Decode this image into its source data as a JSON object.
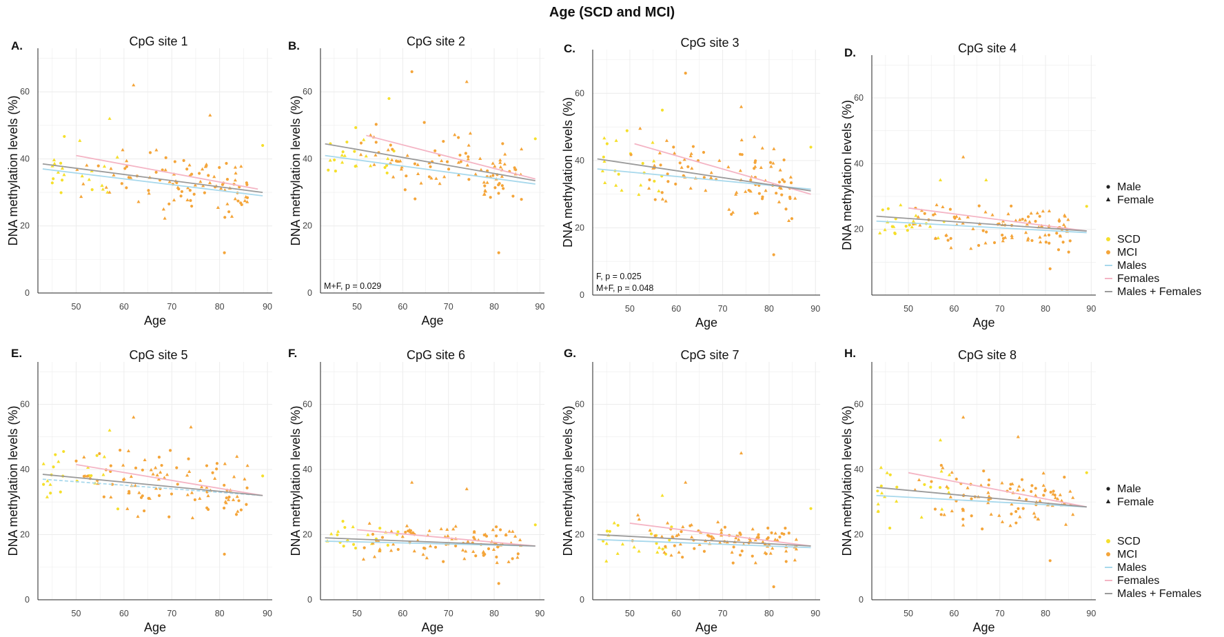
{
  "title": "Age (SCD and MCI)",
  "legend": {
    "shape_items": [
      {
        "label": "Male",
        "shape": "circle",
        "color": "#222222"
      },
      {
        "label": "Female",
        "shape": "triangle",
        "color": "#222222"
      }
    ],
    "color_items": [
      {
        "label": "SCD",
        "kind": "point",
        "color": "#f5df2c"
      },
      {
        "label": "MCI",
        "kind": "point",
        "color": "#f4a53a"
      },
      {
        "label": "Males",
        "kind": "line",
        "color": "#a7d8ec"
      },
      {
        "label": "Females",
        "kind": "line",
        "color": "#f4b4c4"
      },
      {
        "label": "Males + Females",
        "kind": "line",
        "color": "#9a9a9a"
      }
    ]
  },
  "colors": {
    "scd": "#f5df2c",
    "mci": "#f4a53a",
    "males": "#a7d8ec",
    "females": "#f4b4c4",
    "combined": "#9a9a9a",
    "grid": "#ececec"
  },
  "chart_data": [
    {
      "type": "scatter",
      "letter": "A.",
      "title": "CpG site 1",
      "xlabel": "Age",
      "ylabel": "DNA methylation levels (%)",
      "xticks": [
        50,
        60,
        70,
        80,
        90
      ],
      "yticks": [
        0,
        20,
        40,
        60
      ],
      "xlim": [
        42,
        91
      ],
      "ylim": [
        0,
        73
      ],
      "annotations": [],
      "fits": [
        {
          "series": "Males",
          "x": [
            43,
            89
          ],
          "y": [
            37,
            29
          ]
        },
        {
          "series": "Females",
          "x": [
            50,
            88
          ],
          "y": [
            41,
            31
          ]
        },
        {
          "series": "Males + Females",
          "x": [
            43,
            89
          ],
          "y": [
            38.5,
            30
          ]
        }
      ],
      "points": {
        "base": 33,
        "seed": 11,
        "spread": 7,
        "slope": -0.18,
        "outliers": [
          [
            62,
            62,
            "F",
            "MCI"
          ],
          [
            81,
            12,
            "M",
            "MCI"
          ],
          [
            57,
            52,
            "F",
            "SCD"
          ],
          [
            78,
            53,
            "F",
            "MCI"
          ],
          [
            89,
            44,
            "M",
            "SCD"
          ]
        ]
      }
    },
    {
      "type": "scatter",
      "letter": "B.",
      "title": "CpG site 2",
      "xlabel": "Age",
      "ylabel": "DNA methylation levels (%)",
      "xticks": [
        50,
        60,
        70,
        80,
        90
      ],
      "yticks": [
        0,
        20,
        40,
        60
      ],
      "xlim": [
        42,
        91
      ],
      "ylim": [
        0,
        73
      ],
      "annotations": [
        "M+F, p = 0.029"
      ],
      "fits": [
        {
          "series": "Males",
          "x": [
            43,
            89
          ],
          "y": [
            41,
            32.5
          ]
        },
        {
          "series": "Females",
          "x": [
            52,
            89
          ],
          "y": [
            47,
            34
          ]
        },
        {
          "series": "Males + Females",
          "x": [
            43,
            89
          ],
          "y": [
            44.5,
            33.5
          ]
        }
      ],
      "points": {
        "base": 38,
        "seed": 23,
        "spread": 8,
        "slope": -0.2,
        "outliers": [
          [
            62,
            66,
            "M",
            "MCI"
          ],
          [
            74,
            63,
            "F",
            "MCI"
          ],
          [
            81,
            12,
            "M",
            "MCI"
          ],
          [
            57,
            58,
            "M",
            "SCD"
          ],
          [
            89,
            46,
            "M",
            "SCD"
          ]
        ]
      }
    },
    {
      "type": "scatter",
      "letter": "C.",
      "title": "CpG site 3",
      "xlabel": "Age",
      "ylabel": "DNA methylation levels (%)",
      "xticks": [
        50,
        60,
        70,
        80,
        90
      ],
      "yticks": [
        0,
        20,
        40,
        60
      ],
      "xlim": [
        42,
        91
      ],
      "ylim": [
        0,
        73
      ],
      "annotations": [
        "F, p = 0.025",
        "M+F, p = 0.048"
      ],
      "fits": [
        {
          "series": "Males",
          "x": [
            43,
            89
          ],
          "y": [
            37.5,
            31.5
          ]
        },
        {
          "series": "Females",
          "x": [
            51,
            89
          ],
          "y": [
            45,
            30
          ]
        },
        {
          "series": "Males + Females",
          "x": [
            43,
            89
          ],
          "y": [
            40.5,
            31
          ]
        }
      ],
      "points": {
        "base": 35,
        "seed": 37,
        "spread": 8,
        "slope": -0.2,
        "outliers": [
          [
            62,
            66,
            "M",
            "MCI"
          ],
          [
            74,
            56,
            "F",
            "MCI"
          ],
          [
            81,
            12,
            "M",
            "MCI"
          ],
          [
            57,
            55,
            "M",
            "SCD"
          ],
          [
            89,
            44,
            "M",
            "SCD"
          ]
        ]
      }
    },
    {
      "type": "scatter",
      "letter": "D.",
      "title": "CpG site 4",
      "xlabel": "Age",
      "ylabel": "DNA methylation levels (%)",
      "xticks": [
        50,
        60,
        70,
        80,
        90
      ],
      "yticks": [
        20,
        40,
        60
      ],
      "xlim": [
        42,
        91
      ],
      "ylim": [
        0,
        73
      ],
      "annotations": [],
      "fits": [
        {
          "series": "Males",
          "x": [
            43,
            89
          ],
          "y": [
            22.5,
            19
          ]
        },
        {
          "series": "Females",
          "x": [
            50,
            89
          ],
          "y": [
            26.5,
            19.5
          ]
        },
        {
          "series": "Males + Females",
          "x": [
            43,
            89
          ],
          "y": [
            24,
            19.5
          ]
        }
      ],
      "points": {
        "base": 21,
        "seed": 53,
        "spread": 5,
        "slope": -0.09,
        "outliers": [
          [
            62,
            42,
            "F",
            "MCI"
          ],
          [
            81,
            8,
            "M",
            "MCI"
          ],
          [
            57,
            35,
            "F",
            "SCD"
          ],
          [
            67,
            35,
            "F",
            "SCD"
          ],
          [
            89,
            27,
            "M",
            "SCD"
          ]
        ]
      }
    },
    {
      "type": "scatter",
      "letter": "E.",
      "title": "CpG site 5",
      "xlabel": "Age",
      "ylabel": "DNA methylation levels (%)",
      "xticks": [
        50,
        60,
        70,
        80,
        90
      ],
      "yticks": [
        0,
        20,
        40,
        60
      ],
      "xlim": [
        42,
        91
      ],
      "ylim": [
        0,
        73
      ],
      "annotations": [],
      "fits": [
        {
          "series": "Males",
          "x": [
            43,
            89
          ],
          "y": [
            37,
            32
          ],
          "dashed": true
        },
        {
          "series": "Females",
          "x": [
            50,
            89
          ],
          "y": [
            41.5,
            32
          ]
        },
        {
          "series": "Males + Females",
          "x": [
            43,
            89
          ],
          "y": [
            38.5,
            32
          ]
        }
      ],
      "points": {
        "base": 35,
        "seed": 71,
        "spread": 7,
        "slope": -0.15,
        "outliers": [
          [
            62,
            56,
            "F",
            "MCI"
          ],
          [
            81,
            14,
            "M",
            "MCI"
          ],
          [
            57,
            52,
            "F",
            "SCD"
          ],
          [
            74,
            53,
            "F",
            "MCI"
          ],
          [
            89,
            38,
            "M",
            "SCD"
          ]
        ]
      }
    },
    {
      "type": "scatter",
      "letter": "F.",
      "title": "CpG site 6",
      "xlabel": "Age",
      "ylabel": "DNA methylation levels (%)",
      "xticks": [
        50,
        60,
        70,
        80,
        90
      ],
      "yticks": [
        0,
        20,
        40,
        60
      ],
      "xlim": [
        42,
        91
      ],
      "ylim": [
        0,
        73
      ],
      "annotations": [],
      "fits": [
        {
          "series": "Males",
          "x": [
            43,
            89
          ],
          "y": [
            18,
            16.5
          ]
        },
        {
          "series": "Females",
          "x": [
            50,
            89
          ],
          "y": [
            21.5,
            16.5
          ]
        },
        {
          "series": "Males + Females",
          "x": [
            43,
            89
          ],
          "y": [
            19,
            16.5
          ]
        }
      ],
      "points": {
        "base": 17.5,
        "seed": 89,
        "spread": 4.5,
        "slope": -0.06,
        "outliers": [
          [
            62,
            36,
            "F",
            "MCI"
          ],
          [
            74,
            34,
            "F",
            "MCI"
          ],
          [
            81,
            5,
            "M",
            "MCI"
          ],
          [
            89,
            23,
            "M",
            "SCD"
          ]
        ]
      }
    },
    {
      "type": "scatter",
      "letter": "G.",
      "title": "CpG site 7",
      "xlabel": "Age",
      "ylabel": "DNA methylation levels (%)",
      "xticks": [
        50,
        60,
        70,
        80,
        90
      ],
      "yticks": [
        0,
        20,
        40,
        60
      ],
      "xlim": [
        42,
        91
      ],
      "ylim": [
        0,
        73
      ],
      "annotations": [],
      "fits": [
        {
          "series": "Males",
          "x": [
            43,
            89
          ],
          "y": [
            18.5,
            16
          ]
        },
        {
          "series": "Females",
          "x": [
            50,
            89
          ],
          "y": [
            23.5,
            16.5
          ]
        },
        {
          "series": "Males + Females",
          "x": [
            43,
            89
          ],
          "y": [
            20,
            16.5
          ]
        }
      ],
      "points": {
        "base": 18,
        "seed": 97,
        "spread": 4.5,
        "slope": -0.07,
        "outliers": [
          [
            74,
            45,
            "F",
            "MCI"
          ],
          [
            62,
            36,
            "F",
            "MCI"
          ],
          [
            81,
            4,
            "M",
            "MCI"
          ],
          [
            57,
            32,
            "F",
            "SCD"
          ],
          [
            89,
            28,
            "M",
            "SCD"
          ]
        ]
      }
    },
    {
      "type": "scatter",
      "letter": "H.",
      "title": "CpG site 8",
      "xlabel": "Age",
      "ylabel": "DNA methylation levels (%)",
      "xticks": [
        50,
        60,
        70,
        80,
        90
      ],
      "yticks": [
        0,
        20,
        40,
        60
      ],
      "xlim": [
        42,
        91
      ],
      "ylim": [
        0,
        73
      ],
      "annotations": [],
      "fits": [
        {
          "series": "Males",
          "x": [
            43,
            89
          ],
          "y": [
            32,
            28.5
          ]
        },
        {
          "series": "Females",
          "x": [
            50,
            89
          ],
          "y": [
            39,
            28.5
          ]
        },
        {
          "series": "Males + Females",
          "x": [
            43,
            89
          ],
          "y": [
            34.5,
            28.5
          ]
        }
      ],
      "points": {
        "base": 31,
        "seed": 113,
        "spread": 7,
        "slope": -0.13,
        "outliers": [
          [
            62,
            56,
            "F",
            "MCI"
          ],
          [
            81,
            12,
            "M",
            "MCI"
          ],
          [
            57,
            49,
            "F",
            "SCD"
          ],
          [
            74,
            50,
            "F",
            "MCI"
          ],
          [
            89,
            39,
            "M",
            "SCD"
          ]
        ]
      }
    }
  ]
}
